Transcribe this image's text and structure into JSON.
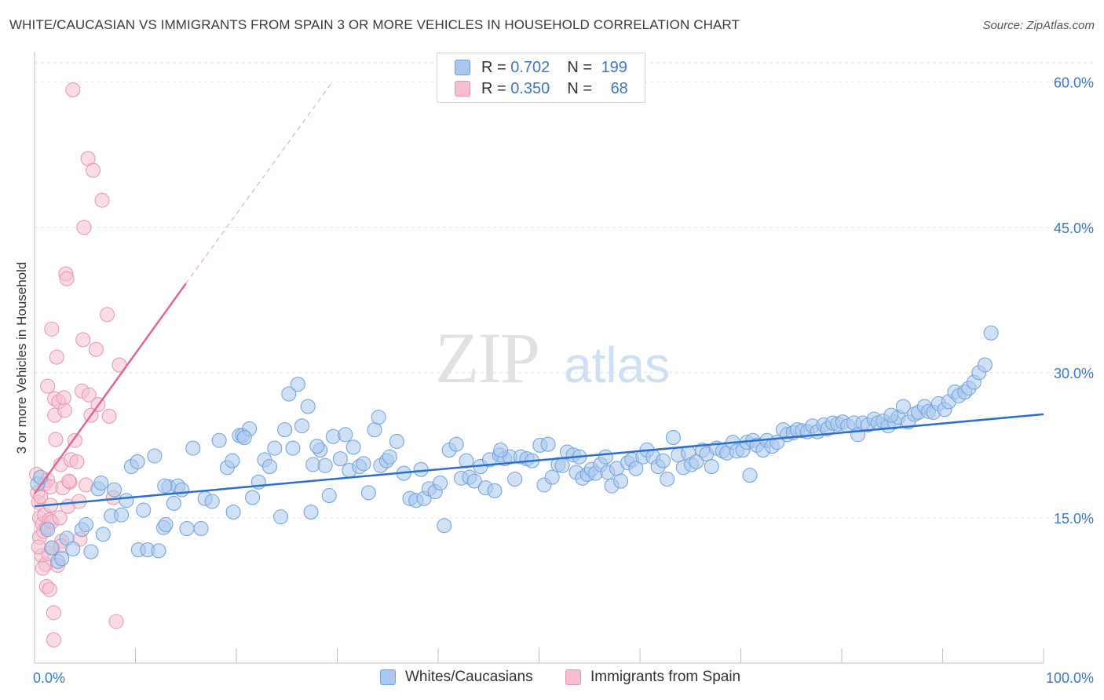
{
  "header": {
    "title": "WHITE/CAUCASIAN VS IMMIGRANTS FROM SPAIN 3 OR MORE VEHICLES IN HOUSEHOLD CORRELATION CHART",
    "source": "Source: ZipAtlas.com"
  },
  "watermark": {
    "zip": "ZIP",
    "atlas": "atlas"
  },
  "legend": {
    "rows": [
      {
        "r_label": "R =",
        "r_value": "0.702",
        "n_label": "N =",
        "n_value": "199"
      },
      {
        "r_label": "R =",
        "r_value": "0.350",
        "n_label": "N =",
        "n_value": "68"
      }
    ]
  },
  "bottom_legend": {
    "blue": "Whites/Caucasians",
    "pink": "Immigrants from Spain"
  },
  "colors": {
    "blue_fill": "#aac8ef",
    "blue_stroke": "#6f9fdc",
    "blue_line": "#2b6fce",
    "pink_fill": "#f6bfd0",
    "pink_stroke": "#e992ae",
    "pink_line": "#e0668f",
    "tick_text": "#3b77c8",
    "grid": "#e3e3e3"
  },
  "chart_data": {
    "type": "scatter",
    "title": "WHITE/CAUCASIAN VS IMMIGRANTS FROM SPAIN 3 OR MORE VEHICLES IN HOUSEHOLD CORRELATION CHART",
    "ylabel": "3 or more Vehicles in Household",
    "xlabel": "",
    "xlim": [
      0,
      100
    ],
    "ylim": [
      0,
      62
    ],
    "x_tick_labels": [
      "0.0%",
      "100.0%"
    ],
    "y_ticks": [
      15,
      30,
      45,
      60
    ],
    "y_tick_labels": [
      "15.0%",
      "30.0%",
      "45.0%",
      "60.0%"
    ],
    "grid": true,
    "legend_position": "top-center",
    "series": [
      {
        "name": "Whites/Caucasians",
        "r": 0.702,
        "n": 199,
        "trend": {
          "x": [
            0,
            100
          ],
          "y": [
            16.2,
            25.7
          ]
        },
        "points": [
          [
            0.3,
            18.5
          ],
          [
            0.6,
            19.2
          ],
          [
            1.3,
            13.8
          ],
          [
            1.7,
            11.9
          ],
          [
            2.3,
            10.5
          ],
          [
            2.7,
            10.8
          ],
          [
            3.2,
            12.9
          ],
          [
            3.8,
            11.8
          ],
          [
            4.7,
            13.8
          ],
          [
            5.1,
            14.3
          ],
          [
            5.6,
            11.5
          ],
          [
            6.3,
            18.0
          ],
          [
            6.6,
            18.6
          ],
          [
            6.8,
            13.3
          ],
          [
            7.6,
            15.2
          ],
          [
            7.9,
            17.9
          ],
          [
            8.6,
            15.3
          ],
          [
            9.1,
            16.8
          ],
          [
            9.6,
            20.3
          ],
          [
            10.2,
            20.8
          ],
          [
            10.3,
            11.7
          ],
          [
            10.8,
            15.8
          ],
          [
            11.2,
            11.7
          ],
          [
            11.9,
            21.4
          ],
          [
            12.3,
            11.6
          ],
          [
            12.8,
            14.0
          ],
          [
            13.0,
            14.3
          ],
          [
            13.3,
            18.2
          ],
          [
            13.8,
            16.5
          ],
          [
            14.2,
            18.3
          ],
          [
            14.6,
            17.9
          ],
          [
            15.1,
            13.9
          ],
          [
            15.7,
            22.2
          ],
          [
            16.5,
            13.9
          ],
          [
            16.9,
            17.0
          ],
          [
            17.6,
            16.7
          ],
          [
            18.3,
            23.0
          ],
          [
            19.1,
            20.2
          ],
          [
            19.6,
            20.9
          ],
          [
            19.7,
            15.6
          ],
          [
            20.3,
            23.5
          ],
          [
            20.6,
            23.5
          ],
          [
            21.3,
            24.2
          ],
          [
            21.6,
            17.1
          ],
          [
            22.2,
            18.7
          ],
          [
            22.8,
            21.0
          ],
          [
            23.3,
            20.3
          ],
          [
            23.8,
            22.2
          ],
          [
            24.4,
            15.1
          ],
          [
            24.8,
            24.1
          ],
          [
            25.2,
            27.8
          ],
          [
            25.6,
            22.2
          ],
          [
            26.1,
            28.8
          ],
          [
            26.5,
            24.5
          ],
          [
            27.1,
            26.5
          ],
          [
            27.4,
            15.6
          ],
          [
            27.6,
            20.5
          ],
          [
            28.3,
            22.0
          ],
          [
            28.8,
            20.4
          ],
          [
            29.2,
            17.3
          ],
          [
            29.6,
            23.4
          ],
          [
            30.3,
            21.1
          ],
          [
            30.8,
            23.6
          ],
          [
            31.2,
            19.9
          ],
          [
            31.6,
            22.3
          ],
          [
            32.2,
            20.3
          ],
          [
            32.6,
            20.6
          ],
          [
            33.1,
            17.6
          ],
          [
            33.7,
            24.1
          ],
          [
            34.1,
            25.4
          ],
          [
            34.3,
            20.4
          ],
          [
            34.9,
            20.9
          ],
          [
            35.2,
            21.3
          ],
          [
            35.9,
            22.9
          ],
          [
            36.6,
            19.6
          ],
          [
            37.2,
            17.0
          ],
          [
            37.8,
            16.8
          ],
          [
            38.3,
            20.0
          ],
          [
            38.6,
            17.0
          ],
          [
            39.1,
            18.0
          ],
          [
            39.7,
            17.7
          ],
          [
            40.2,
            18.6
          ],
          [
            40.6,
            14.2
          ],
          [
            41.1,
            22.0
          ],
          [
            41.8,
            22.6
          ],
          [
            42.3,
            19.1
          ],
          [
            42.8,
            20.9
          ],
          [
            43.1,
            19.2
          ],
          [
            43.6,
            18.8
          ],
          [
            44.2,
            20.3
          ],
          [
            44.7,
            18.1
          ],
          [
            45.1,
            21.0
          ],
          [
            45.6,
            17.8
          ],
          [
            46.1,
            21.5
          ],
          [
            46.6,
            21.1
          ],
          [
            47.1,
            21.3
          ],
          [
            47.6,
            19.0
          ],
          [
            48.2,
            21.3
          ],
          [
            48.8,
            21.1
          ],
          [
            49.3,
            20.9
          ],
          [
            50.1,
            22.5
          ],
          [
            50.5,
            18.4
          ],
          [
            50.9,
            22.6
          ],
          [
            51.3,
            19.2
          ],
          [
            51.9,
            20.5
          ],
          [
            52.3,
            20.4
          ],
          [
            52.8,
            21.8
          ],
          [
            53.4,
            21.5
          ],
          [
            53.7,
            19.7
          ],
          [
            54.3,
            19.1
          ],
          [
            54.8,
            19.5
          ],
          [
            55.2,
            20.0
          ],
          [
            55.6,
            19.6
          ],
          [
            56.1,
            20.5
          ],
          [
            56.6,
            21.3
          ],
          [
            56.8,
            19.7
          ],
          [
            57.2,
            18.3
          ],
          [
            57.7,
            20.1
          ],
          [
            58.1,
            18.8
          ],
          [
            58.8,
            20.7
          ],
          [
            59.2,
            21.0
          ],
          [
            59.6,
            20.1
          ],
          [
            60.3,
            21.3
          ],
          [
            60.7,
            22.0
          ],
          [
            61.3,
            21.3
          ],
          [
            61.8,
            20.3
          ],
          [
            62.3,
            20.9
          ],
          [
            62.7,
            19.0
          ],
          [
            63.3,
            23.3
          ],
          [
            63.8,
            21.5
          ],
          [
            64.3,
            20.2
          ],
          [
            64.8,
            21.7
          ],
          [
            65.1,
            20.5
          ],
          [
            65.6,
            20.8
          ],
          [
            66.2,
            22.0
          ],
          [
            66.6,
            21.6
          ],
          [
            67.1,
            20.3
          ],
          [
            67.6,
            22.2
          ],
          [
            68.2,
            21.9
          ],
          [
            68.6,
            21.7
          ],
          [
            69.2,
            22.8
          ],
          [
            69.6,
            21.9
          ],
          [
            70.2,
            22.0
          ],
          [
            70.6,
            22.8
          ],
          [
            71.2,
            23.0
          ],
          [
            71.6,
            22.5
          ],
          [
            72.2,
            22.0
          ],
          [
            72.6,
            23.0
          ],
          [
            73.1,
            22.4
          ],
          [
            73.6,
            22.8
          ],
          [
            74.2,
            24.1
          ],
          [
            74.6,
            23.6
          ],
          [
            75.2,
            23.8
          ],
          [
            75.6,
            24.1
          ],
          [
            76.1,
            24.0
          ],
          [
            76.6,
            23.9
          ],
          [
            77.1,
            24.5
          ],
          [
            77.6,
            23.9
          ],
          [
            78.2,
            24.6
          ],
          [
            78.6,
            24.2
          ],
          [
            79.1,
            24.8
          ],
          [
            79.6,
            24.7
          ],
          [
            80.1,
            24.9
          ],
          [
            80.6,
            24.5
          ],
          [
            81.2,
            24.8
          ],
          [
            81.6,
            23.6
          ],
          [
            82.1,
            24.8
          ],
          [
            82.6,
            24.6
          ],
          [
            83.2,
            25.2
          ],
          [
            83.6,
            24.8
          ],
          [
            84.1,
            25.0
          ],
          [
            84.6,
            24.5
          ],
          [
            85.2,
            24.9
          ],
          [
            85.6,
            25.4
          ],
          [
            86.1,
            26.5
          ],
          [
            86.6,
            24.9
          ],
          [
            87.2,
            25.7
          ],
          [
            87.6,
            25.9
          ],
          [
            88.2,
            26.5
          ],
          [
            88.6,
            26.0
          ],
          [
            89.1,
            25.9
          ],
          [
            89.6,
            26.8
          ],
          [
            90.2,
            26.2
          ],
          [
            90.6,
            27.0
          ],
          [
            91.2,
            28.0
          ],
          [
            91.6,
            27.6
          ],
          [
            92.2,
            28.0
          ],
          [
            92.6,
            28.4
          ],
          [
            93.1,
            29.0
          ],
          [
            93.6,
            30.0
          ],
          [
            94.2,
            30.8
          ],
          [
            94.8,
            34.1
          ],
          [
            20.8,
            23.3
          ],
          [
            28.0,
            22.4
          ],
          [
            46.2,
            22.0
          ],
          [
            54.0,
            21.3
          ],
          [
            70.9,
            19.4
          ],
          [
            84.9,
            25.6
          ],
          [
            12.9,
            18.3
          ]
        ]
      },
      {
        "name": "Immigrants from Spain",
        "r": 0.35,
        "n": 68,
        "trend": {
          "x": [
            0,
            15
          ],
          "y": [
            17.5,
            39.2
          ]
        },
        "trend_extension": {
          "x": [
            15,
            29.5
          ],
          "y": [
            39.2,
            60.0
          ]
        },
        "points": [
          [
            0.2,
            19.5
          ],
          [
            0.3,
            17.6
          ],
          [
            0.4,
            16.6
          ],
          [
            0.5,
            15.0
          ],
          [
            0.5,
            13.0
          ],
          [
            0.6,
            17.2
          ],
          [
            0.7,
            11.1
          ],
          [
            0.8,
            14.4
          ],
          [
            0.9,
            13.6
          ],
          [
            1.0,
            18.5
          ],
          [
            1.0,
            15.3
          ],
          [
            1.1,
            10.2
          ],
          [
            1.2,
            14.0
          ],
          [
            1.2,
            7.9
          ],
          [
            1.3,
            18.9
          ],
          [
            1.4,
            11.3
          ],
          [
            1.5,
            14.8
          ],
          [
            1.5,
            7.6
          ],
          [
            1.6,
            18.2
          ],
          [
            1.7,
            34.5
          ],
          [
            1.7,
            14.6
          ],
          [
            1.8,
            11.9
          ],
          [
            1.9,
            5.2
          ],
          [
            2.0,
            27.3
          ],
          [
            2.0,
            25.6
          ],
          [
            2.1,
            23.1
          ],
          [
            2.2,
            31.6
          ],
          [
            2.3,
            10.1
          ],
          [
            2.4,
            27.0
          ],
          [
            2.5,
            15.0
          ],
          [
            2.6,
            20.5
          ],
          [
            2.7,
            12.6
          ],
          [
            2.8,
            18.1
          ],
          [
            2.9,
            27.4
          ],
          [
            3.0,
            26.1
          ],
          [
            3.1,
            40.2
          ],
          [
            3.2,
            39.7
          ],
          [
            3.3,
            16.2
          ],
          [
            3.5,
            18.7
          ],
          [
            3.6,
            21.0
          ],
          [
            3.8,
            59.2
          ],
          [
            4.0,
            23.0
          ],
          [
            4.2,
            20.8
          ],
          [
            4.4,
            16.7
          ],
          [
            4.5,
            12.8
          ],
          [
            4.7,
            28.1
          ],
          [
            4.8,
            33.4
          ],
          [
            4.9,
            45.0
          ],
          [
            5.1,
            18.4
          ],
          [
            5.3,
            52.1
          ],
          [
            5.4,
            27.7
          ],
          [
            5.6,
            25.6
          ],
          [
            5.8,
            50.9
          ],
          [
            6.1,
            32.4
          ],
          [
            6.3,
            26.7
          ],
          [
            6.7,
            47.8
          ],
          [
            7.2,
            36.0
          ],
          [
            7.4,
            25.5
          ],
          [
            7.8,
            17.1
          ],
          [
            8.1,
            4.3
          ],
          [
            8.4,
            30.8
          ],
          [
            1.3,
            28.6
          ],
          [
            2.6,
            12.1
          ],
          [
            0.8,
            9.8
          ],
          [
            1.9,
            2.4
          ],
          [
            0.4,
            12.0
          ],
          [
            3.4,
            18.8
          ],
          [
            1.6,
            16.3
          ]
        ]
      }
    ]
  }
}
